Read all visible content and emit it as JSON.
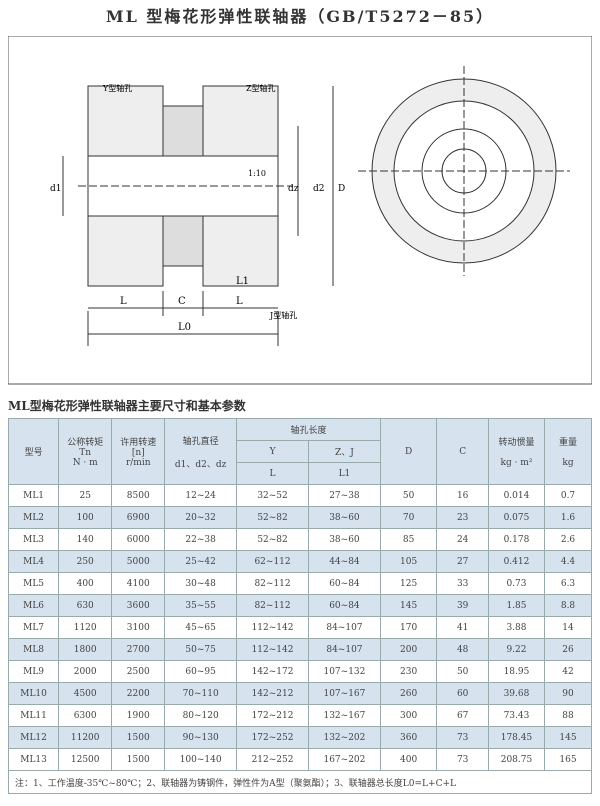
{
  "title": "ML 型梅花形弹性联轴器（GB/T5272－85）",
  "drawing": {
    "y_hole": "Y型轴孔",
    "z_hole": "Z型轴孔",
    "j_hole": "J型轴孔",
    "taper": "1:10",
    "d1": "d1",
    "dz": "dz",
    "d2": "d2",
    "D": "D",
    "L": "L",
    "C": "C",
    "L1": "L1",
    "L0": "L0"
  },
  "table_title": "ML型梅花形弹性联轴器主要尺寸和基本参数",
  "header": {
    "model": "型号",
    "torque": "公称转矩",
    "torque_sym": "Tn",
    "torque_unit": "N · m",
    "speed": "许用转速",
    "speed_sym": "[n]",
    "speed_unit": "r/min",
    "bore": "轴孔直径",
    "bore_sym": "d1、d2、dz",
    "length": "轴孔长度",
    "y": "Y",
    "zj": "Z、J",
    "y_sym": "L",
    "zj_sym": "L1",
    "D": "D",
    "C": "C",
    "inertia": "转动惯量",
    "inertia_unit": "kg · m²",
    "weight": "重量",
    "weight_unit": "kg"
  },
  "rows": [
    [
      "ML1",
      "25",
      "8500",
      "12~24",
      "32~52",
      "27~38",
      "50",
      "16",
      "0.014",
      "0.7"
    ],
    [
      "ML2",
      "100",
      "6900",
      "20~32",
      "52~82",
      "38~60",
      "70",
      "23",
      "0.075",
      "1.6"
    ],
    [
      "ML3",
      "140",
      "6000",
      "22~38",
      "52~82",
      "38~60",
      "85",
      "24",
      "0.178",
      "2.6"
    ],
    [
      "ML4",
      "250",
      "5000",
      "25~42",
      "62~112",
      "44~84",
      "105",
      "27",
      "0.412",
      "4.4"
    ],
    [
      "ML5",
      "400",
      "4100",
      "30~48",
      "82~112",
      "60~84",
      "125",
      "33",
      "0.73",
      "6.3"
    ],
    [
      "ML6",
      "630",
      "3600",
      "35~55",
      "82~112",
      "60~84",
      "145",
      "39",
      "1.85",
      "8.8"
    ],
    [
      "ML7",
      "1120",
      "3100",
      "45~65",
      "112~142",
      "84~107",
      "170",
      "41",
      "3.88",
      "14"
    ],
    [
      "ML8",
      "1800",
      "2700",
      "50~75",
      "112~142",
      "84~107",
      "200",
      "48",
      "9.22",
      "26"
    ],
    [
      "ML9",
      "2000",
      "2500",
      "60~95",
      "142~172",
      "107~132",
      "230",
      "50",
      "18.95",
      "42"
    ],
    [
      "ML10",
      "4500",
      "2200",
      "70~110",
      "142~212",
      "107~167",
      "260",
      "60",
      "39.68",
      "90"
    ],
    [
      "ML11",
      "6300",
      "1900",
      "80~120",
      "172~212",
      "132~167",
      "300",
      "67",
      "73.43",
      "88"
    ],
    [
      "ML12",
      "11200",
      "1500",
      "90~130",
      "172~252",
      "132~202",
      "360",
      "73",
      "178.45",
      "145"
    ],
    [
      "ML13",
      "12500",
      "1500",
      "100~140",
      "212~252",
      "167~202",
      "400",
      "73",
      "208.75",
      "165"
    ]
  ],
  "note": "注：1、工作温度-35℃~80℃；2、联轴器为铸钢件，弹性件为A型（聚氨酯）；3、联轴器总长度L0=L+C+L"
}
